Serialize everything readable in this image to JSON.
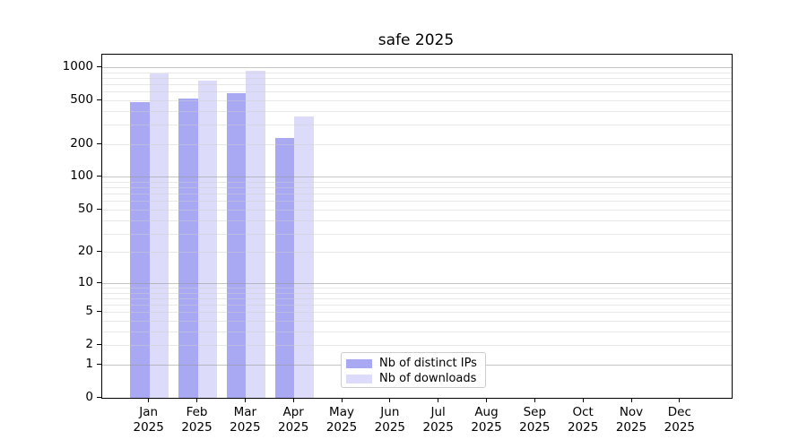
{
  "chart_data": {
    "type": "bar",
    "title": "safe 2025",
    "categories": [
      "Jan 2025",
      "Feb 2025",
      "Mar 2025",
      "Apr 2025",
      "May 2025",
      "Jun 2025",
      "Jul 2025",
      "Aug 2025",
      "Sep 2025",
      "Oct 2025",
      "Nov 2025",
      "Dec 2025"
    ],
    "series": [
      {
        "key": "distinct-ips",
        "name": "Nb of distinct IPs",
        "color": "#a9a9f3",
        "values": [
          480,
          515,
          578,
          228,
          null,
          null,
          null,
          null,
          null,
          null,
          null,
          null
        ]
      },
      {
        "key": "downloads",
        "name": "Nb of downloads",
        "color": "#dcdcfa",
        "values": [
          870,
          755,
          933,
          357,
          null,
          null,
          null,
          null,
          null,
          null,
          null,
          null
        ]
      }
    ],
    "y_ticks": [
      0,
      1,
      2,
      5,
      10,
      20,
      50,
      100,
      200,
      500,
      1000
    ],
    "y_scale": "log1p",
    "ylim": [
      0,
      1300
    ],
    "xlabel": "",
    "ylabel": "",
    "grid": true,
    "legend_position": "lower-center-left",
    "colors": {
      "grid_major": "#bbbbbb",
      "grid_minor": "#e9e9e9",
      "axis": "#000000",
      "background": "#ffffff"
    }
  }
}
